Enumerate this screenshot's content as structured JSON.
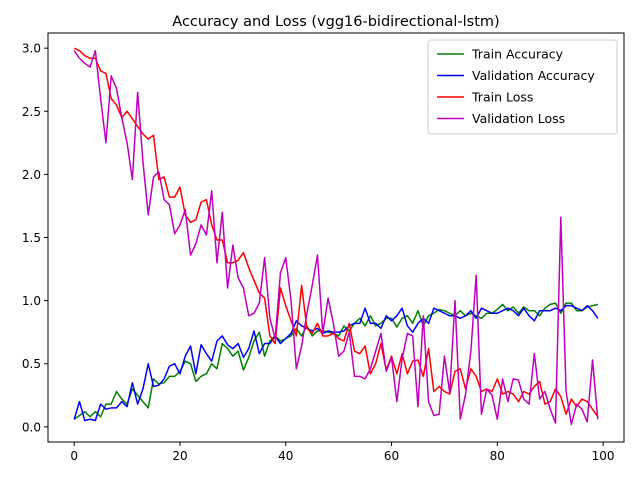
{
  "chart_data": {
    "type": "line",
    "title": "Accuracy and Loss (vgg16-bidirectional-lstm)",
    "xlabel": "",
    "ylabel": "",
    "xlim": [
      -4.95,
      103.95
    ],
    "ylim": [
      -0.12,
      3.12
    ],
    "xticks": [
      0,
      20,
      40,
      60,
      80,
      100
    ],
    "yticks": [
      0.0,
      0.5,
      1.0,
      1.5,
      2.0,
      2.5,
      3.0
    ],
    "xtick_labels": [
      "0",
      "20",
      "40",
      "60",
      "80",
      "100"
    ],
    "ytick_labels": [
      "0.0",
      "0.5",
      "1.0",
      "1.5",
      "2.0",
      "2.5",
      "3.0"
    ],
    "grid": false,
    "legend_position": "upper right",
    "x": [
      0,
      1,
      2,
      3,
      4,
      5,
      6,
      7,
      8,
      9,
      10,
      11,
      12,
      13,
      14,
      15,
      16,
      17,
      18,
      19,
      20,
      21,
      22,
      23,
      24,
      25,
      26,
      27,
      28,
      29,
      30,
      31,
      32,
      33,
      34,
      35,
      36,
      37,
      38,
      39,
      40,
      41,
      42,
      43,
      44,
      45,
      46,
      47,
      48,
      49,
      50,
      51,
      52,
      53,
      54,
      55,
      56,
      57,
      58,
      59,
      60,
      61,
      62,
      63,
      64,
      65,
      66,
      67,
      68,
      69,
      70,
      71,
      72,
      73,
      74,
      75,
      76,
      77,
      78,
      79,
      80,
      81,
      82,
      83,
      84,
      85,
      86,
      87,
      88,
      89,
      90,
      91,
      92,
      93,
      94,
      95,
      96,
      97,
      98,
      99
    ],
    "series": [
      {
        "name": "Train Accuracy",
        "color": "#008000",
        "values": [
          0.06,
          0.09,
          0.12,
          0.08,
          0.12,
          0.08,
          0.18,
          0.18,
          0.28,
          0.22,
          0.18,
          0.3,
          0.25,
          0.2,
          0.15,
          0.38,
          0.34,
          0.35,
          0.4,
          0.4,
          0.44,
          0.52,
          0.5,
          0.36,
          0.4,
          0.42,
          0.5,
          0.46,
          0.66,
          0.62,
          0.56,
          0.6,
          0.45,
          0.55,
          0.68,
          0.75,
          0.56,
          0.68,
          0.72,
          0.68,
          0.7,
          0.72,
          0.78,
          0.72,
          0.8,
          0.72,
          0.76,
          0.76,
          0.75,
          0.74,
          0.72,
          0.8,
          0.76,
          0.82,
          0.86,
          0.8,
          0.88,
          0.8,
          0.82,
          0.86,
          0.86,
          0.79,
          0.86,
          0.88,
          0.82,
          0.92,
          0.8,
          0.88,
          0.9,
          0.93,
          0.92,
          0.9,
          0.88,
          0.92,
          0.88,
          0.9,
          0.88,
          0.86,
          0.9,
          0.9,
          0.93,
          0.97,
          0.92,
          0.95,
          0.9,
          0.95,
          0.92,
          0.92,
          0.88,
          0.94,
          0.97,
          0.98,
          0.9,
          0.98,
          0.98,
          0.92,
          0.92,
          0.95,
          0.96,
          0.97
        ]
      },
      {
        "name": "Validation Accuracy",
        "color": "#0000ff",
        "values": [
          0.06,
          0.2,
          0.05,
          0.06,
          0.05,
          0.18,
          0.14,
          0.15,
          0.15,
          0.2,
          0.16,
          0.35,
          0.18,
          0.3,
          0.5,
          0.32,
          0.33,
          0.38,
          0.48,
          0.5,
          0.42,
          0.56,
          0.64,
          0.42,
          0.65,
          0.58,
          0.52,
          0.68,
          0.72,
          0.65,
          0.62,
          0.66,
          0.55,
          0.62,
          0.76,
          0.58,
          0.66,
          0.66,
          0.72,
          0.66,
          0.7,
          0.74,
          0.84,
          0.8,
          0.78,
          0.76,
          0.78,
          0.74,
          0.76,
          0.75,
          0.75,
          0.76,
          0.8,
          0.82,
          0.82,
          0.94,
          0.82,
          0.82,
          0.78,
          0.88,
          0.84,
          0.88,
          0.94,
          0.8,
          0.75,
          0.82,
          0.86,
          0.82,
          0.94,
          0.92,
          0.9,
          0.88,
          0.88,
          0.86,
          0.88,
          0.92,
          0.86,
          0.94,
          0.92,
          0.9,
          0.9,
          0.92,
          0.94,
          0.92,
          0.88,
          0.94,
          0.88,
          0.84,
          0.92,
          0.92,
          0.92,
          0.94,
          0.92,
          0.96,
          0.96,
          0.94,
          0.92,
          0.96,
          0.92,
          0.86
        ]
      },
      {
        "name": "Train Loss",
        "color": "#ff0000",
        "values": [
          3.0,
          2.98,
          2.94,
          2.92,
          2.92,
          2.82,
          2.8,
          2.6,
          2.55,
          2.45,
          2.5,
          2.44,
          2.38,
          2.32,
          2.28,
          2.31,
          1.96,
          1.98,
          1.82,
          1.82,
          1.9,
          1.68,
          1.62,
          1.64,
          1.78,
          1.8,
          1.6,
          1.48,
          1.48,
          1.3,
          1.3,
          1.32,
          1.38,
          1.26,
          1.16,
          1.06,
          1.02,
          0.72,
          0.66,
          1.1,
          0.96,
          0.84,
          0.72,
          1.12,
          0.78,
          0.74,
          0.82,
          0.72,
          0.72,
          0.74,
          0.7,
          0.68,
          0.82,
          0.6,
          0.58,
          0.64,
          0.42,
          0.5,
          0.66,
          0.45,
          0.56,
          0.42,
          0.58,
          0.42,
          0.52,
          0.53,
          0.4,
          0.62,
          0.28,
          0.32,
          0.28,
          0.26,
          0.44,
          0.46,
          0.3,
          0.46,
          0.4,
          0.28,
          0.3,
          0.28,
          0.38,
          0.26,
          0.28,
          0.26,
          0.2,
          0.28,
          0.26,
          0.32,
          0.36,
          0.18,
          0.2,
          0.3,
          0.24,
          0.1,
          0.22,
          0.16,
          0.22,
          0.2,
          0.14,
          0.08
        ]
      },
      {
        "name": "Validation Loss",
        "color": "#bf00bf",
        "values": [
          2.98,
          2.92,
          2.88,
          2.85,
          2.98,
          2.6,
          2.25,
          2.78,
          2.68,
          2.45,
          2.25,
          1.96,
          2.65,
          2.1,
          1.68,
          1.98,
          2.02,
          1.8,
          1.76,
          1.53,
          1.6,
          1.72,
          1.36,
          1.45,
          1.6,
          1.52,
          1.87,
          1.3,
          1.7,
          1.1,
          1.44,
          1.18,
          1.1,
          0.88,
          0.9,
          0.98,
          1.34,
          0.86,
          0.7,
          1.22,
          1.34,
          1.0,
          0.46,
          0.64,
          0.9,
          1.12,
          1.36,
          0.74,
          1.02,
          0.82,
          0.56,
          0.6,
          0.75,
          0.4,
          0.4,
          0.38,
          0.46,
          0.6,
          0.74,
          0.44,
          0.55,
          0.2,
          0.54,
          0.74,
          0.72,
          0.16,
          0.88,
          0.2,
          0.09,
          0.1,
          0.56,
          0.27,
          1.0,
          0.06,
          0.26,
          0.6,
          1.2,
          0.1,
          0.3,
          0.25,
          0.06,
          0.38,
          0.2,
          0.38,
          0.37,
          0.22,
          0.18,
          0.58,
          0.22,
          0.28,
          0.14,
          0.03,
          1.66,
          0.28,
          0.02,
          0.18,
          0.14,
          0.04,
          0.53,
          0.06
        ]
      }
    ]
  }
}
